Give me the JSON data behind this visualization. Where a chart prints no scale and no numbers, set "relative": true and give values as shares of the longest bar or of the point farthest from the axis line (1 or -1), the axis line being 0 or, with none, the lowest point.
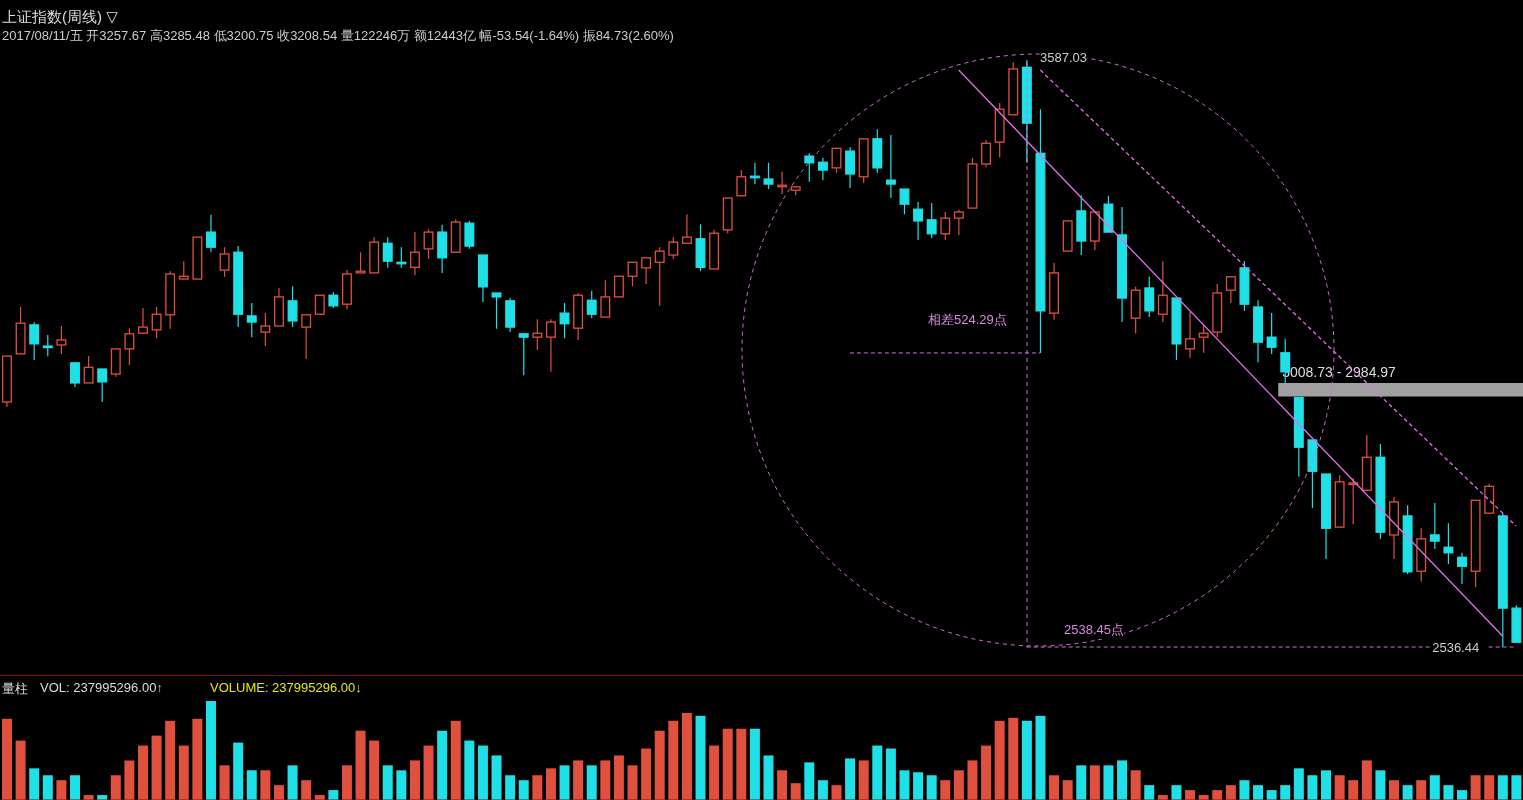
{
  "chart_data": [
    {
      "type": "candlestick",
      "title": "上证指数(周线) ▽",
      "subtitle": "2017/08/11/五 开3257.67 高3285.48 低3200.75 收3208.54 量122246万 额12443亿 幅-53.54(-1.64%) 振84.73(2.60%)",
      "tick_labels": false,
      "categories": [
        null,
        null,
        null,
        null,
        null,
        null,
        null,
        null,
        null,
        null,
        null,
        null,
        null,
        null,
        null,
        null,
        null,
        null,
        null,
        null,
        null,
        null,
        null,
        null,
        null,
        null,
        null,
        null,
        null,
        null,
        null,
        null,
        null,
        null,
        null,
        null,
        null,
        null,
        null,
        null,
        null,
        null,
        null,
        null,
        null,
        null,
        null,
        null,
        null,
        null,
        null,
        null,
        null,
        null,
        null,
        null,
        null,
        null,
        null,
        null,
        null,
        null,
        null,
        null,
        null,
        null,
        null,
        null,
        null,
        null,
        null,
        null,
        null,
        null,
        null,
        null,
        null,
        null,
        null,
        null,
        null,
        null,
        null,
        null,
        null,
        null,
        null,
        null,
        null,
        null,
        null,
        null,
        null,
        null,
        null,
        null,
        null,
        null,
        null,
        null,
        null,
        null,
        null,
        null,
        null,
        null,
        null,
        null,
        null,
        null,
        null,
        null
      ],
      "ohlc": [
        [
          2975,
          3057,
          2966,
          3057
        ],
        [
          3061,
          3145,
          3061,
          3116
        ],
        [
          3113,
          3118,
          3050,
          3079
        ],
        [
          3075,
          3095,
          3057,
          3073
        ],
        [
          3077,
          3111,
          3061,
          3086
        ],
        [
          3045,
          3046,
          3002,
          3009
        ],
        [
          3009,
          3057,
          3009,
          3037
        ],
        [
          3034,
          3034,
          2975,
          3011
        ],
        [
          3025,
          3070,
          3020,
          3070
        ],
        [
          3070,
          3107,
          3041,
          3097
        ],
        [
          3098,
          3143,
          3098,
          3109
        ],
        [
          3104,
          3145,
          3089,
          3132
        ],
        [
          3131,
          3209,
          3106,
          3204
        ],
        [
          3195,
          3227,
          3195,
          3200
        ],
        [
          3195,
          3270,
          3195,
          3270
        ],
        [
          3279,
          3310,
          3243,
          3252
        ],
        [
          3211,
          3252,
          3199,
          3240
        ],
        [
          3243,
          3254,
          3109,
          3132
        ],
        [
          3129,
          3152,
          3091,
          3118
        ],
        [
          3100,
          3134,
          3075,
          3111
        ],
        [
          3111,
          3179,
          3111,
          3163
        ],
        [
          3156,
          3182,
          3109,
          3120
        ],
        [
          3109,
          3131,
          3052,
          3131
        ],
        [
          3132,
          3166,
          3132,
          3166
        ],
        [
          3166,
          3172,
          3143,
          3147
        ],
        [
          3150,
          3211,
          3141,
          3204
        ],
        [
          3206,
          3243,
          3206,
          3209
        ],
        [
          3206,
          3270,
          3206,
          3261
        ],
        [
          3259,
          3270,
          3215,
          3227
        ],
        [
          3225,
          3252,
          3215,
          3224
        ],
        [
          3216,
          3279,
          3202,
          3243
        ],
        [
          3249,
          3284,
          3231,
          3279
        ],
        [
          3279,
          3292,
          3206,
          3233
        ],
        [
          3243,
          3302,
          3243,
          3297
        ],
        [
          3295,
          3299,
          3249,
          3254
        ],
        [
          3238,
          3238,
          3154,
          3181
        ],
        [
          3170,
          3170,
          3106,
          3163
        ],
        [
          3156,
          3161,
          3100,
          3109
        ],
        [
          3097,
          3097,
          3023,
          3091
        ],
        [
          3091,
          3123,
          3068,
          3098
        ],
        [
          3091,
          3123,
          3029,
          3118
        ],
        [
          3134,
          3152,
          3089,
          3115
        ],
        [
          3107,
          3170,
          3086,
          3166
        ],
        [
          3157,
          3174,
          3125,
          3132
        ],
        [
          3127,
          3193,
          3127,
          3163
        ],
        [
          3163,
          3200,
          3163,
          3200
        ],
        [
          3200,
          3225,
          3182,
          3225
        ],
        [
          3215,
          3234,
          3186,
          3233
        ],
        [
          3225,
          3252,
          3147,
          3245
        ],
        [
          3238,
          3270,
          3231,
          3261
        ],
        [
          3259,
          3311,
          3259,
          3270
        ],
        [
          3267,
          3293,
          3209,
          3216
        ],
        [
          3213,
          3283,
          3213,
          3277
        ],
        [
          3283,
          3340,
          3277,
          3340
        ],
        [
          3344,
          3390,
          3344,
          3378
        ],
        [
          3379,
          3403,
          3365,
          3378
        ],
        [
          3374,
          3403,
          3356,
          3365
        ],
        [
          3361,
          3387,
          3347,
          3363
        ],
        [
          3354,
          3363,
          3345,
          3360
        ],
        [
          3415,
          3420,
          3369,
          3403
        ],
        [
          3404,
          3412,
          3372,
          3390
        ],
        [
          3394,
          3431,
          3385,
          3429
        ],
        [
          3424,
          3431,
          3358,
          3383
        ],
        [
          3378,
          3449,
          3367,
          3446
        ],
        [
          3446,
          3463,
          3385,
          3394
        ],
        [
          3372,
          3453,
          3340,
          3365
        ],
        [
          3356,
          3356,
          3311,
          3329
        ],
        [
          3320,
          3333,
          3265,
          3299
        ],
        [
          3301,
          3331,
          3268,
          3276
        ],
        [
          3276,
          3315,
          3265,
          3304
        ],
        [
          3304,
          3319,
          3274,
          3315
        ],
        [
          3322,
          3412,
          3322,
          3401
        ],
        [
          3401,
          3444,
          3395,
          3438
        ],
        [
          3440,
          3510,
          3413,
          3499
        ],
        [
          3489,
          3583,
          3489,
          3571
        ],
        [
          3574,
          3587.03,
          3403,
          3474
        ],
        [
          3420,
          3499,
          3062.74,
          3138
        ],
        [
          3134,
          3224,
          3122,
          3206
        ],
        [
          3245,
          3299,
          3245,
          3299
        ],
        [
          3317,
          3345,
          3238,
          3263
        ],
        [
          3263,
          3315,
          3247,
          3315
        ],
        [
          3329,
          3344,
          3279,
          3279
        ],
        [
          3274,
          3324,
          3118,
          3161
        ],
        [
          3125,
          3181,
          3098,
          3175
        ],
        [
          3179,
          3199,
          3127,
          3138
        ],
        [
          3132,
          3227,
          3118,
          3166
        ],
        [
          3161,
          3161,
          3050,
          3079
        ],
        [
          3070,
          3136,
          3054,
          3088
        ],
        [
          3091,
          3113,
          3063,
          3098
        ],
        [
          3100,
          3186,
          3091,
          3170
        ],
        [
          3175,
          3199,
          3152,
          3199
        ],
        [
          3215,
          3227,
          3138,
          3150
        ],
        [
          3145,
          3157,
          3046,
          3082
        ],
        [
          3091,
          3134,
          3061,
          3073
        ],
        [
          3063,
          3088,
          3008.73,
          3029
        ],
        [
          2983,
          2984.97,
          2841,
          2894
        ],
        [
          2907,
          2910,
          2785,
          2851
        ],
        [
          2846,
          2848,
          2694,
          2749
        ],
        [
          2751,
          2844,
          2751,
          2832
        ],
        [
          2828,
          2839,
          2756,
          2830
        ],
        [
          2817,
          2916,
          2817,
          2876
        ],
        [
          2876,
          2900,
          2730,
          2742
        ],
        [
          2737,
          2805,
          2694,
          2796
        ],
        [
          2771,
          2790,
          2667,
          2671
        ],
        [
          2672,
          2749,
          2653,
          2730
        ],
        [
          2737,
          2794,
          2712,
          2726
        ],
        [
          2715,
          2758,
          2685,
          2705
        ],
        [
          2697,
          2705,
          2649,
          2681
        ],
        [
          2672,
          2799,
          2644,
          2799
        ],
        [
          2776,
          2828,
          2776,
          2824
        ],
        [
          2771,
          2776,
          2536.44,
          2606
        ],
        [
          2606,
          2611,
          2543,
          2545
        ]
      ],
      "colors": [
        "#e0503f",
        "#e0503f",
        "#1fe0e6",
        "#1fe0e6",
        "#e0503f",
        "#1fe0e6",
        "#e0503f",
        "#1fe0e6",
        "#e0503f",
        "#e0503f",
        "#e0503f",
        "#e0503f",
        "#e0503f",
        "#e0503f",
        "#e0503f",
        "#1fe0e6",
        "#e0503f",
        "#1fe0e6",
        "#1fe0e6",
        "#e0503f",
        "#e0503f",
        "#1fe0e6",
        "#e0503f",
        "#e0503f",
        "#1fe0e6",
        "#e0503f",
        "#e0503f",
        "#e0503f",
        "#1fe0e6",
        "#1fe0e6",
        "#e0503f",
        "#e0503f",
        "#1fe0e6",
        "#e0503f",
        "#1fe0e6",
        "#1fe0e6",
        "#1fe0e6",
        "#1fe0e6",
        "#1fe0e6",
        "#e0503f",
        "#e0503f",
        "#1fe0e6",
        "#e0503f",
        "#1fe0e6",
        "#e0503f",
        "#e0503f",
        "#e0503f",
        "#e0503f",
        "#e0503f",
        "#e0503f",
        "#e0503f",
        "#1fe0e6",
        "#e0503f",
        "#e0503f",
        "#e0503f",
        "#1fe0e6",
        "#1fe0e6",
        "#e0503f",
        "#e0503f",
        "#1fe0e6",
        "#1fe0e6",
        "#e0503f",
        "#1fe0e6",
        "#e0503f",
        "#1fe0e6",
        "#1fe0e6",
        "#1fe0e6",
        "#1fe0e6",
        "#1fe0e6",
        "#e0503f",
        "#e0503f",
        "#e0503f",
        "#e0503f",
        "#e0503f",
        "#e0503f",
        "#1fe0e6",
        "#1fe0e6",
        "#e0503f",
        "#e0503f",
        "#1fe0e6",
        "#e0503f",
        "#1fe0e6",
        "#1fe0e6",
        "#e0503f",
        "#1fe0e6",
        "#e0503f",
        "#1fe0e6",
        "#e0503f",
        "#e0503f",
        "#e0503f",
        "#e0503f",
        "#1fe0e6",
        "#1fe0e6",
        "#1fe0e6",
        "#1fe0e6",
        "#1fe0e6",
        "#1fe0e6",
        "#1fe0e6",
        "#e0503f",
        "#e0503f",
        "#e0503f",
        "#1fe0e6",
        "#e0503f",
        "#1fe0e6",
        "#e0503f",
        "#1fe0e6",
        "#1fe0e6",
        "#1fe0e6",
        "#e0503f",
        "#e0503f",
        "#1fe0e6",
        "#1fe0e6"
      ],
      "series": [
        {
          "type": "line",
          "color": "#e070e8",
          "line_style": "solid",
          "values": [
            null,
            null,
            null,
            null,
            null,
            null,
            null,
            null,
            null,
            null,
            null,
            null,
            null,
            null,
            null,
            null,
            null,
            null,
            null,
            null,
            null,
            null,
            null,
            null,
            null,
            null,
            null,
            null,
            null,
            null,
            null,
            null,
            null,
            null,
            null,
            null,
            null,
            null,
            null,
            null,
            null,
            null,
            null,
            null,
            null,
            null,
            null,
            null,
            null,
            null,
            null,
            null,
            null,
            null,
            null,
            null,
            null,
            null,
            null,
            null,
            null,
            null,
            null,
            null,
            null,
            null,
            null,
            null,
            null,
            null,
            3569,
            null,
            null,
            null,
            null,
            null,
            null,
            null,
            null,
            null,
            null,
            null,
            null,
            null,
            null,
            null,
            null,
            null,
            null,
            null,
            null,
            null,
            null,
            null,
            null,
            null,
            null,
            null,
            null,
            null,
            null,
            null,
            null,
            null,
            null,
            null,
            null,
            null,
            null,
            null,
            2556,
            null
          ]
        },
        {
          "type": "line",
          "color": "#e070e8",
          "line_style": "dashed",
          "values": [
            null,
            null,
            null,
            null,
            null,
            null,
            null,
            null,
            null,
            null,
            null,
            null,
            null,
            null,
            null,
            null,
            null,
            null,
            null,
            null,
            null,
            null,
            null,
            null,
            null,
            null,
            null,
            null,
            null,
            null,
            null,
            null,
            null,
            null,
            null,
            null,
            null,
            null,
            null,
            null,
            null,
            null,
            null,
            null,
            null,
            null,
            null,
            null,
            null,
            null,
            null,
            null,
            null,
            null,
            null,
            null,
            null,
            null,
            null,
            null,
            null,
            null,
            null,
            null,
            null,
            null,
            null,
            null,
            null,
            null,
            null,
            null,
            null,
            null,
            null,
            null,
            3569,
            null,
            null,
            null,
            null,
            null,
            null,
            null,
            null,
            null,
            null,
            null,
            null,
            null,
            null,
            null,
            null,
            null,
            null,
            null,
            null,
            null,
            null,
            null,
            null,
            null,
            null,
            null,
            null,
            null,
            null,
            null,
            null,
            null,
            null,
            2753
          ]
        }
      ],
      "bands": [
        {
          "axis": "y",
          "from": 2984.97,
          "to": 3008.73,
          "label": "3008.73 - 2984.97",
          "color": "#a0a0a0"
        }
      ],
      "ref_lines": [
        {
          "axis": "y",
          "value": 3062.74,
          "color": "#d070d8",
          "line_style": "dashed"
        },
        {
          "axis": "y",
          "value": 2536.44,
          "label": "2536.44",
          "color": "#d070d8",
          "line_style": "dashed"
        }
      ],
      "annotations": [
        "3587.03",
        "相差524.29点",
        "2538.45点"
      ]
    },
    {
      "type": "bar",
      "title": "量柱",
      "relative": true,
      "tick_labels": false,
      "categories": [
        null,
        null,
        null,
        null,
        null,
        null,
        null,
        null,
        null,
        null,
        null,
        null,
        null,
        null,
        null,
        null,
        null,
        null,
        null,
        null,
        null,
        null,
        null,
        null,
        null,
        null,
        null,
        null,
        null,
        null,
        null,
        null,
        null,
        null,
        null,
        null,
        null,
        null,
        null,
        null,
        null,
        null,
        null,
        null,
        null,
        null,
        null,
        null,
        null,
        null,
        null,
        null,
        null,
        null,
        null,
        null,
        null,
        null,
        null,
        null,
        null,
        null,
        null,
        null,
        null,
        null,
        null,
        null,
        null,
        null,
        null,
        null,
        null,
        null,
        null,
        null,
        null,
        null,
        null,
        null,
        null,
        null,
        null,
        null,
        null,
        null,
        null,
        null,
        null,
        null,
        null,
        null,
        null,
        null,
        null,
        null,
        null,
        null,
        null,
        null,
        null,
        null,
        null,
        null,
        null,
        null,
        null,
        null,
        null,
        null,
        null,
        null
      ],
      "values": [
        0.82,
        0.6,
        0.32,
        0.25,
        0.2,
        0.25,
        0.05,
        0.05,
        0.25,
        0.4,
        0.55,
        0.65,
        0.8,
        0.55,
        0.82,
        1,
        0.35,
        0.58,
        0.3,
        0.3,
        0.15,
        0.35,
        0.2,
        0.05,
        0.1,
        0.35,
        0.7,
        0.6,
        0.35,
        0.3,
        0.4,
        0.55,
        0.7,
        0.8,
        0.6,
        0.55,
        0.45,
        0.25,
        0.2,
        0.25,
        0.32,
        0.35,
        0.4,
        0.35,
        0.4,
        0.45,
        0.35,
        0.52,
        0.7,
        0.8,
        0.88,
        0.85,
        0.55,
        0.72,
        0.72,
        0.72,
        0.45,
        0.3,
        0.17,
        0.38,
        0.2,
        0.15,
        0.42,
        0.4,
        0.55,
        0.52,
        0.3,
        0.28,
        0.25,
        0.2,
        0.3,
        0.4,
        0.55,
        0.8,
        0.83,
        0.8,
        0.85,
        0.25,
        0.2,
        0.35,
        0.35,
        0.35,
        0.4,
        0.3,
        0.15,
        0.05,
        0.15,
        0.1,
        0.05,
        0.1,
        0.15,
        0.2,
        0.15,
        0.1,
        0.15,
        0.32,
        0.25,
        0.3,
        0.25,
        0.2,
        0.4,
        0.3,
        0.2,
        0.15,
        0.2,
        0.25,
        0.15,
        0.1,
        0.25,
        0.25,
        0.25,
        0.25
      ],
      "colors": [
        "#e0503f",
        "#e0503f",
        "#1fe0e6",
        "#1fe0e6",
        "#e0503f",
        "#1fe0e6",
        "#e0503f",
        "#1fe0e6",
        "#e0503f",
        "#e0503f",
        "#e0503f",
        "#e0503f",
        "#e0503f",
        "#e0503f",
        "#e0503f",
        "#1fe0e6",
        "#e0503f",
        "#1fe0e6",
        "#1fe0e6",
        "#e0503f",
        "#e0503f",
        "#1fe0e6",
        "#e0503f",
        "#e0503f",
        "#1fe0e6",
        "#e0503f",
        "#e0503f",
        "#e0503f",
        "#1fe0e6",
        "#1fe0e6",
        "#e0503f",
        "#e0503f",
        "#1fe0e6",
        "#e0503f",
        "#1fe0e6",
        "#1fe0e6",
        "#1fe0e6",
        "#1fe0e6",
        "#1fe0e6",
        "#e0503f",
        "#e0503f",
        "#1fe0e6",
        "#e0503f",
        "#1fe0e6",
        "#e0503f",
        "#e0503f",
        "#e0503f",
        "#e0503f",
        "#e0503f",
        "#e0503f",
        "#e0503f",
        "#1fe0e6",
        "#e0503f",
        "#e0503f",
        "#e0503f",
        "#1fe0e6",
        "#1fe0e6",
        "#e0503f",
        "#e0503f",
        "#1fe0e6",
        "#1fe0e6",
        "#e0503f",
        "#1fe0e6",
        "#e0503f",
        "#1fe0e6",
        "#1fe0e6",
        "#1fe0e6",
        "#1fe0e6",
        "#1fe0e6",
        "#e0503f",
        "#e0503f",
        "#e0503f",
        "#e0503f",
        "#e0503f",
        "#e0503f",
        "#1fe0e6",
        "#1fe0e6",
        "#e0503f",
        "#e0503f",
        "#1fe0e6",
        "#e0503f",
        "#1fe0e6",
        "#1fe0e6",
        "#e0503f",
        "#1fe0e6",
        "#e0503f",
        "#1fe0e6",
        "#e0503f",
        "#e0503f",
        "#e0503f",
        "#e0503f",
        "#1fe0e6",
        "#1fe0e6",
        "#1fe0e6",
        "#1fe0e6",
        "#1fe0e6",
        "#1fe0e6",
        "#1fe0e6",
        "#e0503f",
        "#e0503f",
        "#e0503f",
        "#1fe0e6",
        "#e0503f",
        "#1fe0e6",
        "#e0503f",
        "#1fe0e6",
        "#1fe0e6",
        "#1fe0e6",
        "#e0503f",
        "#e0503f",
        "#1fe0e6",
        "#1fe0e6"
      ],
      "annotations": [
        "VOL: 237995296.00↑",
        "VOLUME: 237995296.00↓"
      ]
    }
  ]
}
